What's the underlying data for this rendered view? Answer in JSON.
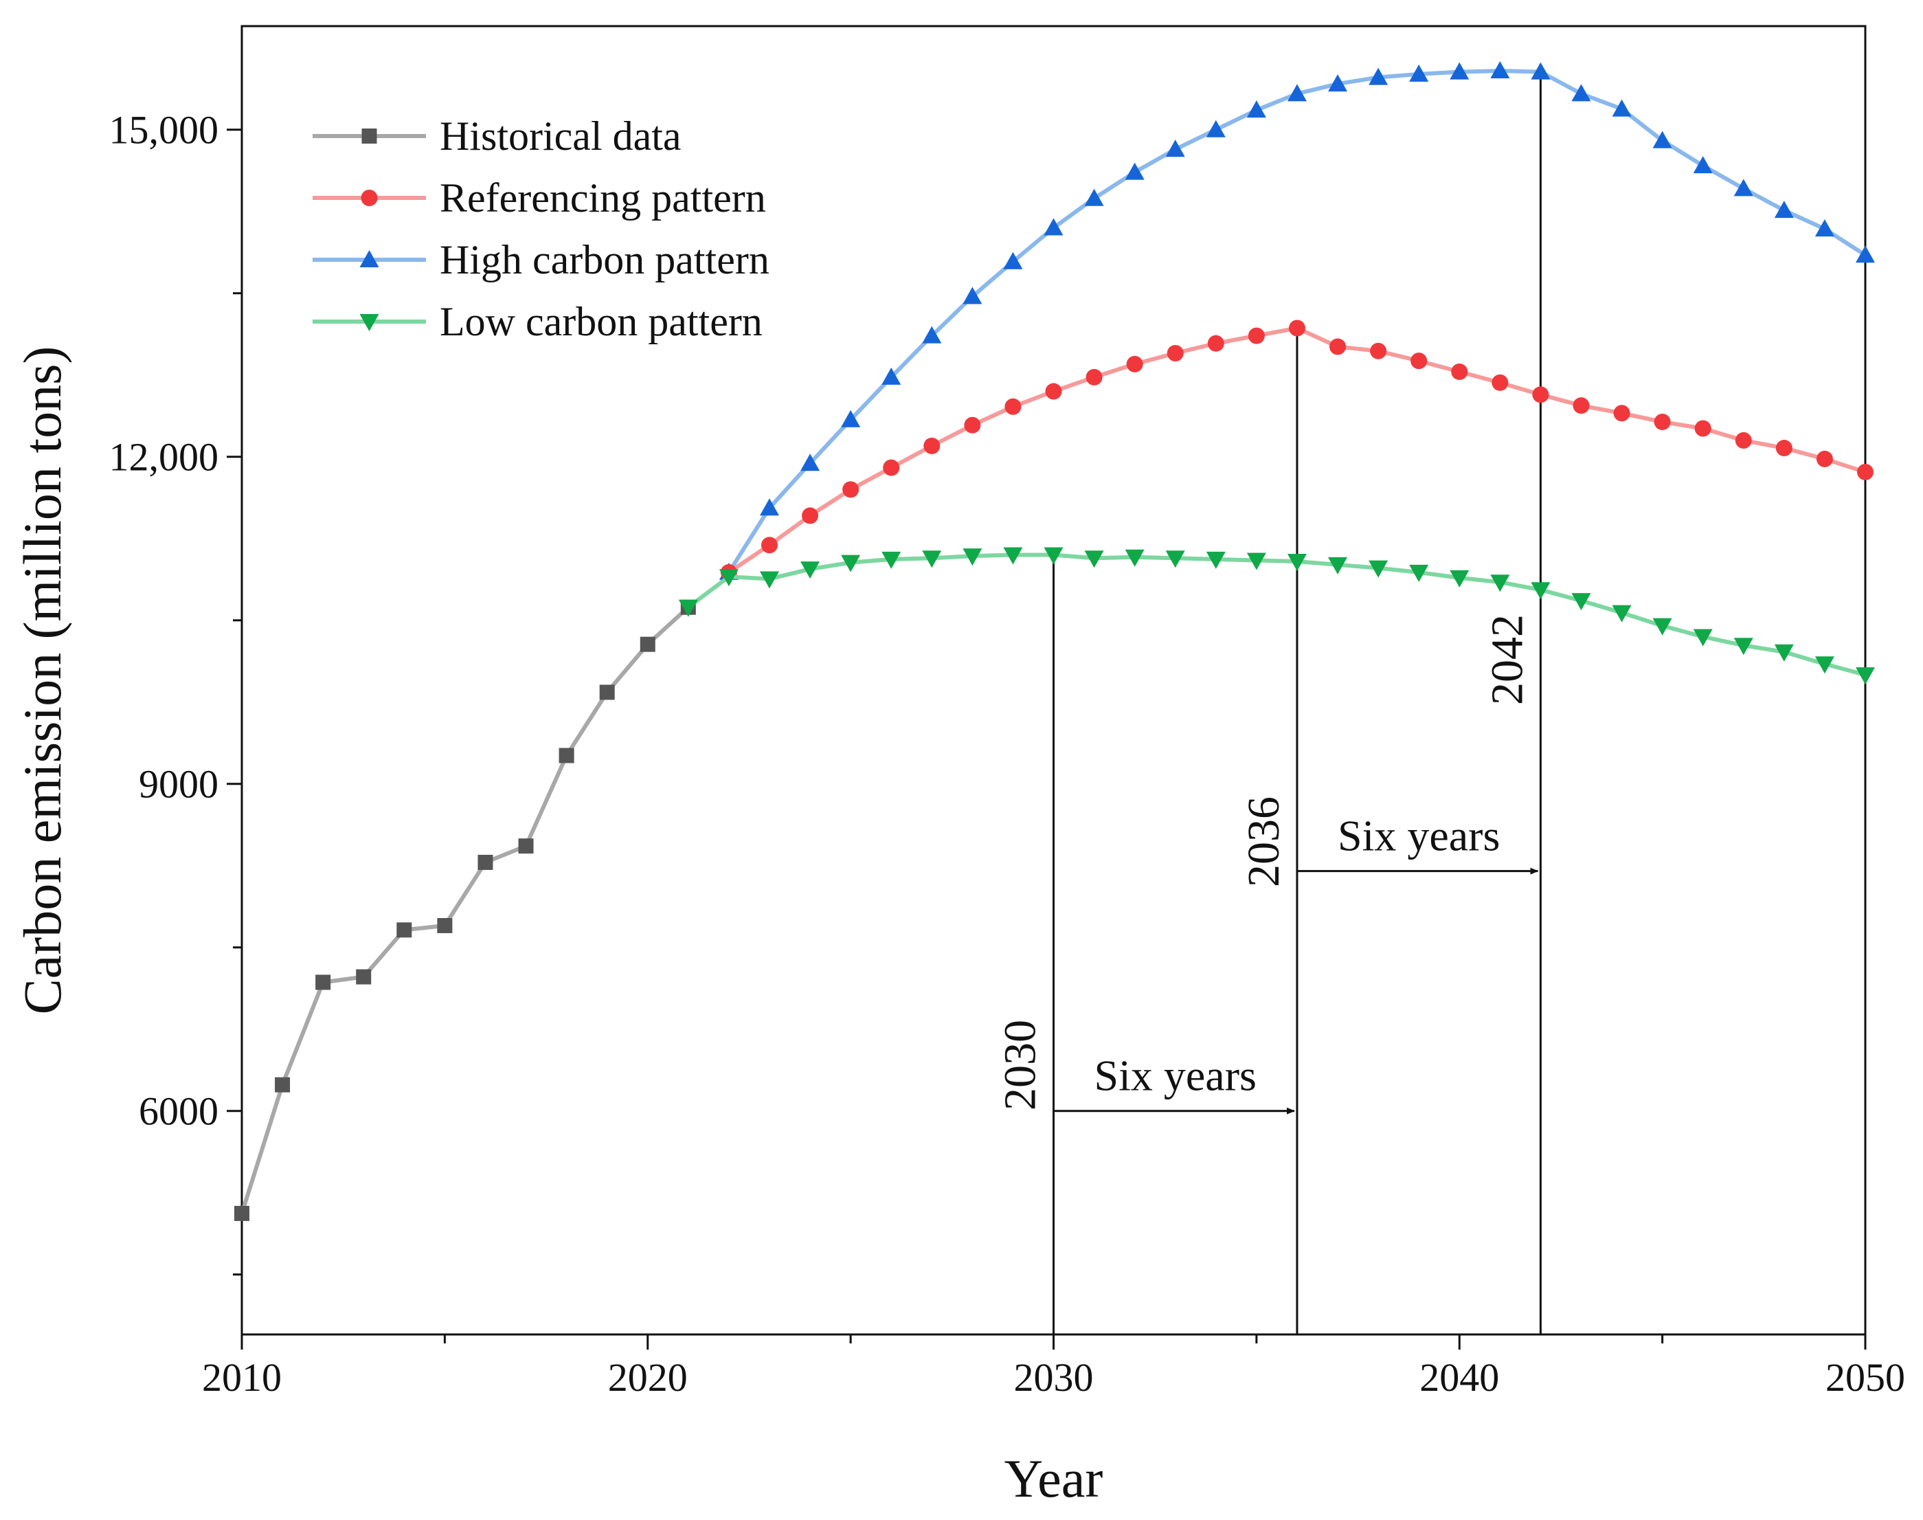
{
  "chart_data": {
    "type": "line",
    "title": "",
    "xlabel": "Year",
    "ylabel": "Carbon emission (million tons)",
    "xlim": [
      2010,
      2050
    ],
    "ylim": [
      3950,
      15950
    ],
    "xticks": [
      2010,
      2020,
      2030,
      2040,
      2050
    ],
    "xtick_labels": [
      "2010",
      "2020",
      "2030",
      "2040",
      "2050"
    ],
    "yticks": [
      6000,
      9000,
      12000,
      15000
    ],
    "ytick_labels": [
      "6000",
      "9000",
      "12,000",
      "15,000"
    ],
    "legend_position": "top-left",
    "series": [
      {
        "name": "Historical data",
        "color": "#555555",
        "line_color": "#a8a8a8",
        "marker": "square",
        "x": [
          2010,
          2011,
          2012,
          2013,
          2014,
          2015,
          2016,
          2017,
          2018,
          2019,
          2020,
          2021
        ],
        "y": [
          5060,
          6240,
          7180,
          7230,
          7660,
          7700,
          8280,
          8430,
          9260,
          9840,
          10280,
          10620
        ]
      },
      {
        "name": "Referencing pattern",
        "color": "#f0383c",
        "line_color": "#f79a9a",
        "marker": "circle",
        "x": [
          2022,
          2023,
          2024,
          2025,
          2026,
          2027,
          2028,
          2029,
          2030,
          2031,
          2032,
          2033,
          2034,
          2035,
          2036,
          2037,
          2038,
          2039,
          2040,
          2041,
          2042,
          2043,
          2044,
          2045,
          2046,
          2047,
          2048,
          2049,
          2050
        ],
        "y": [
          10940,
          11190,
          11460,
          11700,
          11900,
          12100,
          12290,
          12460,
          12600,
          12730,
          12850,
          12950,
          13040,
          13110,
          13180,
          13010,
          12970,
          12880,
          12780,
          12680,
          12570,
          12470,
          12400,
          12320,
          12260,
          12150,
          12080,
          11980,
          11860
        ]
      },
      {
        "name": "High carbon pattern",
        "color": "#1565d8",
        "line_color": "#8ab8ec",
        "marker": "triangle-up",
        "x": [
          2022,
          2023,
          2024,
          2025,
          2026,
          2027,
          2028,
          2029,
          2030,
          2031,
          2032,
          2033,
          2034,
          2035,
          2036,
          2037,
          2038,
          2039,
          2040,
          2041,
          2042,
          2043,
          2044,
          2045,
          2046,
          2047,
          2048,
          2049,
          2050
        ],
        "y": [
          10940,
          11530,
          11940,
          12340,
          12730,
          13110,
          13470,
          13790,
          14100,
          14370,
          14610,
          14820,
          15000,
          15180,
          15330,
          15420,
          15480,
          15510,
          15530,
          15540,
          15530,
          15330,
          15190,
          14900,
          14670,
          14460,
          14260,
          14090,
          13850
        ]
      },
      {
        "name": "Low carbon pattern",
        "color": "#10a848",
        "line_color": "#7dd7a0",
        "marker": "triangle-down",
        "x": [
          2021,
          2022,
          2023,
          2024,
          2025,
          2026,
          2027,
          2028,
          2029,
          2030,
          2031,
          2032,
          2033,
          2034,
          2035,
          2036,
          2037,
          2038,
          2039,
          2040,
          2041,
          2042,
          2043,
          2044,
          2045,
          2046,
          2047,
          2048,
          2049,
          2050
        ],
        "y": [
          10620,
          10900,
          10880,
          10970,
          11030,
          11060,
          11070,
          11090,
          11100,
          11100,
          11070,
          11080,
          11070,
          11060,
          11050,
          11040,
          11010,
          10980,
          10940,
          10890,
          10850,
          10780,
          10680,
          10570,
          10450,
          10350,
          10270,
          10210,
          10100,
          10000
        ]
      }
    ],
    "reference_lines": [
      {
        "year": 2030,
        "label": "2030",
        "top_value": 11100
      },
      {
        "year": 2036,
        "label": "2036",
        "top_value": 13180
      },
      {
        "year": 2042,
        "label": "2042",
        "top_value": 15530
      }
    ],
    "arrows": [
      {
        "from_year": 2030,
        "to_year": 2036,
        "y_value": 6000,
        "label": "Six years"
      },
      {
        "from_year": 2036,
        "to_year": 2042,
        "y_value": 8200,
        "label": "Six years"
      }
    ]
  }
}
